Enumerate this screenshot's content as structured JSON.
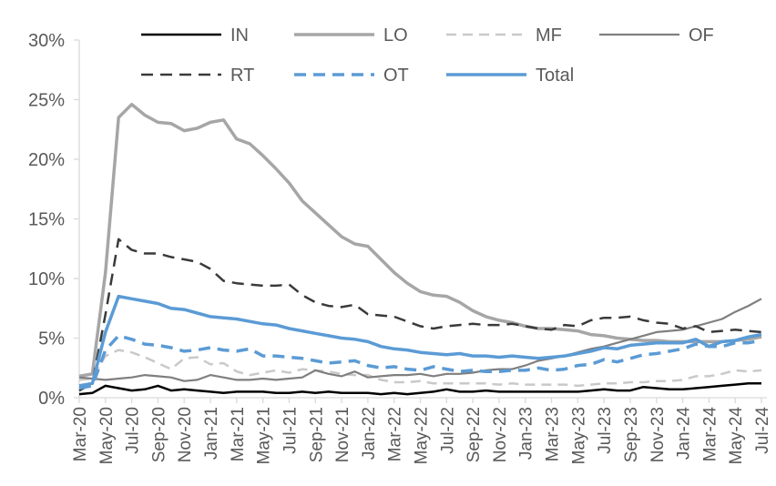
{
  "chart_data": {
    "type": "line",
    "title": "",
    "xlabel": "",
    "ylabel": "",
    "ylim": [
      0,
      30
    ],
    "grid": false,
    "legend_position": "top",
    "legend_rows": [
      [
        "IN",
        "LO",
        "MF",
        "OF"
      ],
      [
        "RT",
        "OT",
        "Total"
      ]
    ],
    "y_ticks": [
      0,
      5,
      10,
      15,
      20,
      25,
      30
    ],
    "y_tick_labels": [
      "0%",
      "5%",
      "10%",
      "15%",
      "20%",
      "25%",
      "30%"
    ],
    "x": [
      "Mar-20",
      "Apr-20",
      "May-20",
      "Jun-20",
      "Jul-20",
      "Aug-20",
      "Sep-20",
      "Oct-20",
      "Nov-20",
      "Dec-20",
      "Jan-21",
      "Feb-21",
      "Mar-21",
      "Apr-21",
      "May-21",
      "Jun-21",
      "Jul-21",
      "Aug-21",
      "Sep-21",
      "Oct-21",
      "Nov-21",
      "Dec-21",
      "Jan-22",
      "Feb-22",
      "Mar-22",
      "Apr-22",
      "May-22",
      "Jun-22",
      "Jul-22",
      "Aug-22",
      "Sep-22",
      "Oct-22",
      "Nov-22",
      "Dec-22",
      "Jan-23",
      "Feb-23",
      "Mar-23",
      "Apr-23",
      "May-23",
      "Jun-23",
      "Jul-23",
      "Aug-23",
      "Sep-23",
      "Oct-23",
      "Nov-23",
      "Dec-23",
      "Jan-24",
      "Feb-24",
      "Mar-24",
      "Apr-24",
      "May-24",
      "Jun-24",
      "Jul-24"
    ],
    "x_tick_labels": [
      "Mar-20",
      "May-20",
      "Jul-20",
      "Sep-20",
      "Nov-20",
      "Jan-21",
      "Mar-21",
      "May-21",
      "Jul-21",
      "Sep-21",
      "Nov-21",
      "Jan-22",
      "Mar-22",
      "May-22",
      "Jul-22",
      "Sep-22",
      "Nov-22",
      "Jan-23",
      "Mar-23",
      "May-23",
      "Jul-23",
      "Sep-23",
      "Nov-23",
      "Jan-24",
      "Mar-24",
      "May-24",
      "Jul-24"
    ],
    "series": [
      {
        "name": "IN",
        "color": "#000000",
        "style": "solid",
        "line_width": 2.5,
        "values": [
          0.3,
          0.4,
          1.0,
          0.8,
          0.6,
          0.7,
          1.0,
          0.6,
          0.7,
          0.6,
          0.5,
          0.4,
          0.5,
          0.5,
          0.5,
          0.4,
          0.4,
          0.5,
          0.4,
          0.5,
          0.4,
          0.4,
          0.4,
          0.3,
          0.4,
          0.3,
          0.4,
          0.5,
          0.7,
          0.5,
          0.5,
          0.6,
          0.5,
          0.5,
          0.5,
          0.5,
          0.5,
          0.5,
          0.5,
          0.6,
          0.7,
          0.6,
          0.6,
          0.9,
          0.8,
          0.7,
          0.7,
          0.8,
          0.9,
          1.0,
          1.1,
          1.2,
          1.2
        ]
      },
      {
        "name": "LO",
        "color": "#a6a6a6",
        "style": "solid",
        "line_width": 3.5,
        "values": [
          1.8,
          2.0,
          10.5,
          23.5,
          24.6,
          23.7,
          23.1,
          23.0,
          22.4,
          22.6,
          23.1,
          23.3,
          21.7,
          21.3,
          20.3,
          19.2,
          18.0,
          16.5,
          15.5,
          14.5,
          13.5,
          12.9,
          12.7,
          11.6,
          10.5,
          9.6,
          8.9,
          8.6,
          8.5,
          8.0,
          7.3,
          6.8,
          6.5,
          6.3,
          6.0,
          5.8,
          5.8,
          5.7,
          5.6,
          5.3,
          5.2,
          5.0,
          4.9,
          4.8,
          4.8,
          4.7,
          4.7,
          4.7,
          4.7,
          4.7,
          4.8,
          4.9,
          5.1
        ]
      },
      {
        "name": "MF",
        "color": "#c9c9c9",
        "style": "dashed",
        "line_width": 2.5,
        "values": [
          1.5,
          1.6,
          3.5,
          4.0,
          3.8,
          3.4,
          2.9,
          2.4,
          3.3,
          3.4,
          2.8,
          2.9,
          2.2,
          1.9,
          2.1,
          2.3,
          2.1,
          2.4,
          2.3,
          2.2,
          2.0,
          1.9,
          1.9,
          1.5,
          1.3,
          1.3,
          1.4,
          1.2,
          1.2,
          1.2,
          1.2,
          1.2,
          1.1,
          1.2,
          1.1,
          1.1,
          1.1,
          1.1,
          1.0,
          1.1,
          1.2,
          1.2,
          1.3,
          1.3,
          1.4,
          1.4,
          1.5,
          1.8,
          1.8,
          2.0,
          2.3,
          2.2,
          2.3
        ]
      },
      {
        "name": "OF",
        "color": "#7f7f7f",
        "style": "solid",
        "line_width": 2.2,
        "values": [
          1.7,
          1.6,
          1.5,
          1.6,
          1.7,
          1.9,
          1.8,
          1.7,
          1.4,
          1.5,
          1.9,
          1.7,
          1.5,
          1.5,
          1.6,
          1.5,
          1.6,
          1.7,
          2.3,
          2.0,
          1.8,
          2.2,
          1.7,
          1.8,
          1.9,
          1.9,
          2.0,
          1.8,
          2.0,
          2.0,
          2.1,
          2.3,
          2.4,
          2.4,
          2.7,
          3.1,
          3.3,
          3.5,
          3.8,
          4.1,
          4.3,
          4.6,
          4.9,
          5.2,
          5.5,
          5.6,
          5.7,
          6.0,
          6.3,
          6.6,
          7.2,
          7.7,
          8.3
        ]
      },
      {
        "name": "RT",
        "color": "#3a3a3a",
        "style": "dashed",
        "line_width": 2.5,
        "values": [
          0.6,
          1.2,
          7.0,
          13.3,
          12.4,
          12.1,
          12.1,
          11.8,
          11.6,
          11.4,
          10.8,
          9.8,
          9.6,
          9.5,
          9.4,
          9.4,
          9.5,
          8.6,
          8.0,
          7.7,
          7.6,
          7.8,
          7.0,
          6.9,
          6.8,
          6.4,
          6.0,
          5.8,
          6.0,
          6.1,
          6.2,
          6.1,
          6.1,
          6.2,
          6.0,
          5.8,
          5.7,
          6.1,
          6.0,
          6.5,
          6.7,
          6.7,
          6.8,
          6.5,
          6.3,
          6.2,
          5.8,
          6.0,
          5.5,
          5.6,
          5.7,
          5.6,
          5.5
        ]
      },
      {
        "name": "OT",
        "color": "#5b9bd5",
        "style": "dashed",
        "line_width": 3.5,
        "values": [
          0.8,
          1.0,
          4.0,
          5.2,
          4.9,
          4.5,
          4.4,
          4.2,
          3.9,
          4.0,
          4.2,
          4.0,
          3.9,
          4.1,
          3.5,
          3.5,
          3.4,
          3.3,
          3.1,
          2.9,
          3.0,
          3.1,
          2.7,
          2.5,
          2.6,
          2.4,
          2.3,
          2.6,
          2.4,
          2.2,
          2.3,
          2.2,
          2.2,
          2.3,
          2.3,
          2.5,
          2.3,
          2.4,
          2.7,
          2.8,
          3.2,
          3.0,
          3.3,
          3.6,
          3.7,
          3.9,
          4.1,
          4.5,
          4.3,
          4.3,
          4.6,
          4.6,
          4.8
        ]
      },
      {
        "name": "Total",
        "color": "#5b9bd5",
        "style": "solid",
        "line_width": 3.5,
        "values": [
          1.0,
          1.2,
          5.5,
          8.5,
          8.3,
          8.1,
          7.9,
          7.5,
          7.4,
          7.1,
          6.8,
          6.7,
          6.6,
          6.4,
          6.2,
          6.1,
          5.8,
          5.6,
          5.4,
          5.2,
          5.0,
          4.9,
          4.7,
          4.3,
          4.1,
          4.0,
          3.8,
          3.7,
          3.6,
          3.7,
          3.5,
          3.5,
          3.4,
          3.5,
          3.4,
          3.3,
          3.4,
          3.5,
          3.7,
          3.9,
          4.2,
          4.1,
          4.4,
          4.5,
          4.6,
          4.6,
          4.6,
          4.9,
          4.3,
          4.7,
          4.8,
          5.1,
          5.3
        ]
      }
    ],
    "theme": {
      "axis_text_color": "#595959",
      "axis_line_color": "#d9d9d9",
      "background": "#ffffff",
      "accent_blue": "#5b9bd5"
    }
  }
}
